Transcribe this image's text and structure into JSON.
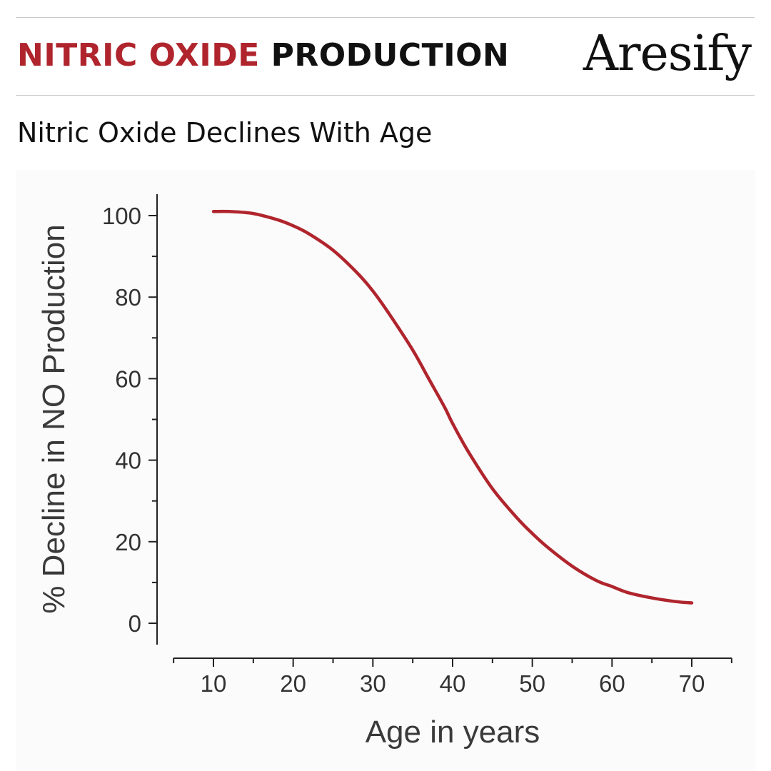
{
  "header": {
    "title_accent": "NITRIC OXIDE",
    "title_rest": "PRODUCTION",
    "brand": "Aresify"
  },
  "colors": {
    "accent": "#b0252d",
    "text": "#111111"
  },
  "chart_data": {
    "type": "line",
    "title": "Nitric Oxide Declines With Age",
    "xlabel": "Age in years",
    "ylabel": "% Decline in NO Production",
    "xlim": [
      5,
      75
    ],
    "ylim": [
      -5,
      105
    ],
    "xticks": [
      10,
      20,
      30,
      40,
      50,
      60,
      70
    ],
    "yticks": [
      0,
      20,
      40,
      60,
      80,
      100
    ],
    "grid": false,
    "series": [
      {
        "color": "#b0252d",
        "x": [
          10,
          12,
          15,
          18,
          20,
          22,
          25,
          28,
          30,
          32,
          35,
          37,
          39,
          40,
          42,
          45,
          48,
          50,
          52,
          55,
          58,
          60,
          62,
          65,
          68,
          70
        ],
        "y": [
          101,
          101,
          100.5,
          99,
          97.5,
          95.5,
          91.5,
          86,
          81.5,
          76,
          67,
          60,
          53,
          49,
          42,
          33,
          26,
          22,
          18.5,
          14,
          10.5,
          9,
          7.5,
          6.2,
          5.3,
          5
        ]
      }
    ]
  }
}
